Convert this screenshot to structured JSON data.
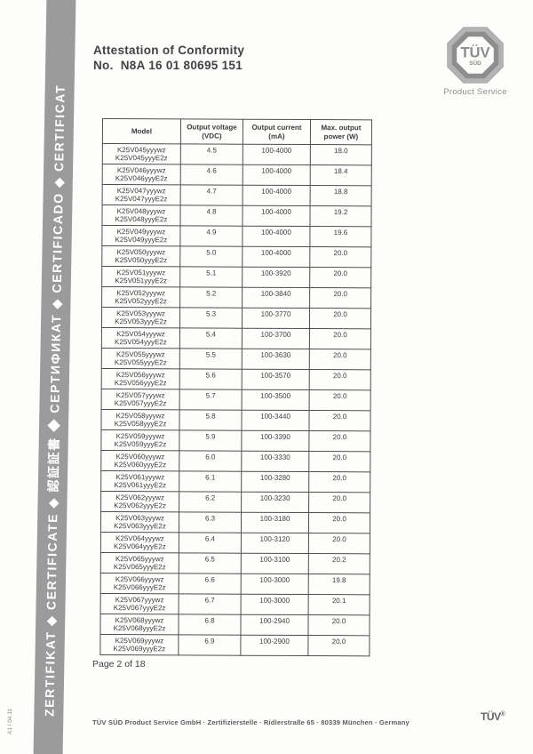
{
  "document": {
    "title_line1": "Attestation of Conformity",
    "title_line2": "No.  N8A 16 01 80695 151",
    "page_number": "Page 2 of 18",
    "footer_text": "TÜV SÜD Product Service GmbH  ·  Zertifizierstelle  ·  Ridlerstraße 65  ·  80339 München  ·  Germany",
    "footer_mark": "TÜV",
    "footer_mark_reg": "®"
  },
  "sidebar": {
    "band_text": "ZERTIFIKAT ◆ CERTIFICATE ◆ 認証証書 ◆ СЕРТИФИКАТ ◆ CERTIFICADO ◆ CERTIFICAT",
    "side_note": "A1 / 04.11",
    "band_color": "#9b9b9b"
  },
  "logo": {
    "name": "TÜV SÜD octagon logo",
    "text_top": "TÜV",
    "text_bottom": "SÜD",
    "caption": "Product Service",
    "gray": "#8f8f8f"
  },
  "table": {
    "headers": [
      {
        "line1": "Model",
        "line2": ""
      },
      {
        "line1": "Output voltage",
        "line2": "(VDC)"
      },
      {
        "line1": "Output current",
        "line2": "(mA)"
      },
      {
        "line1": "Max. output",
        "line2": "power (W)"
      }
    ],
    "rows": [
      {
        "model_a": "K25V045yyywz",
        "model_b": "K25V045yyyE2z",
        "voltage": "4.5",
        "current": "100-4000",
        "power": "18.0"
      },
      {
        "model_a": "K25V046yyywz",
        "model_b": "K25V046yyyE2z",
        "voltage": "4.6",
        "current": "100-4000",
        "power": "18.4"
      },
      {
        "model_a": "K25V047yyywz",
        "model_b": "K25V047yyyE2z",
        "voltage": "4.7",
        "current": "100-4000",
        "power": "18.8"
      },
      {
        "model_a": "K25V048yyywz",
        "model_b": "K25V048yyyE2z",
        "voltage": "4.8",
        "current": "100-4000",
        "power": "19.2"
      },
      {
        "model_a": "K25V049yyywz",
        "model_b": "K25V049yyyE2z",
        "voltage": "4.9",
        "current": "100-4000",
        "power": "19.6"
      },
      {
        "model_a": "K25V050yyywz",
        "model_b": "K25V050yyyE2z",
        "voltage": "5.0",
        "current": "100-4000",
        "power": "20.0"
      },
      {
        "model_a": "K25V051yyywz",
        "model_b": "K25V051yyyE2z",
        "voltage": "5.1",
        "current": "100-3920",
        "power": "20.0"
      },
      {
        "model_a": "K25V052yyywz",
        "model_b": "K25V052yyyE2z",
        "voltage": "5.2",
        "current": "100-3840",
        "power": "20.0"
      },
      {
        "model_a": "K25V053yyywz",
        "model_b": "K25V053yyyE2z",
        "voltage": "5.3",
        "current": "100-3770",
        "power": "20.0"
      },
      {
        "model_a": "K25V054yyywz",
        "model_b": "K25V054yyyE2z",
        "voltage": "5.4",
        "current": "100-3700",
        "power": "20.0"
      },
      {
        "model_a": "K25V055yyywz",
        "model_b": "K25V055yyyE2z",
        "voltage": "5.5",
        "current": "100-3630",
        "power": "20.0"
      },
      {
        "model_a": "K25V056yyywz",
        "model_b": "K25V056yyyE2z",
        "voltage": "5.6",
        "current": "100-3570",
        "power": "20.0"
      },
      {
        "model_a": "K25V057yyywz",
        "model_b": "K25V057yyyE2z",
        "voltage": "5.7",
        "current": "100-3500",
        "power": "20.0"
      },
      {
        "model_a": "K25V058yyywz",
        "model_b": "K25V058yyyE2z",
        "voltage": "5.8",
        "current": "100-3440",
        "power": "20.0"
      },
      {
        "model_a": "K25V059yyywz",
        "model_b": "K25V059yyyE2z",
        "voltage": "5.9",
        "current": "100-3390",
        "power": "20.0"
      },
      {
        "model_a": "K25V060yyywz",
        "model_b": "K25V060yyyE2z",
        "voltage": "6.0",
        "current": "100-3330",
        "power": "20.0"
      },
      {
        "model_a": "K25V061yyywz",
        "model_b": "K25V061yyyE2z",
        "voltage": "6.1",
        "current": "100-3280",
        "power": "20.0"
      },
      {
        "model_a": "K25V062yyywz",
        "model_b": "K25V062yyyE2z",
        "voltage": "6.2",
        "current": "100-3230",
        "power": "20.0"
      },
      {
        "model_a": "K25V063yyywz",
        "model_b": "K25V063yyyE2z",
        "voltage": "6.3",
        "current": "100-3180",
        "power": "20.0"
      },
      {
        "model_a": "K25V064yyywz",
        "model_b": "K25V064yyyE2z",
        "voltage": "6.4",
        "current": "100-3120",
        "power": "20.0"
      },
      {
        "model_a": "K25V065yyywz",
        "model_b": "K25V065yyyE2z",
        "voltage": "6.5",
        "current": "100-3100",
        "power": "20.2"
      },
      {
        "model_a": "K25V066yyywz",
        "model_b": "K25V066yyyE2z",
        "voltage": "6.6",
        "current": "100-3000",
        "power": "19.8"
      },
      {
        "model_a": "K25V067yyywz",
        "model_b": "K25V067yyyE2z",
        "voltage": "6.7",
        "current": "100-3000",
        "power": "20.1"
      },
      {
        "model_a": "K25V068yyywz",
        "model_b": "K25V068yyyE2z",
        "voltage": "6.8",
        "current": "100-2940",
        "power": "20.0"
      },
      {
        "model_a": "K25V069yyywz",
        "model_b": "K25V069yyyE2z",
        "voltage": "6.9",
        "current": "100-2900",
        "power": "20.0"
      }
    ]
  }
}
